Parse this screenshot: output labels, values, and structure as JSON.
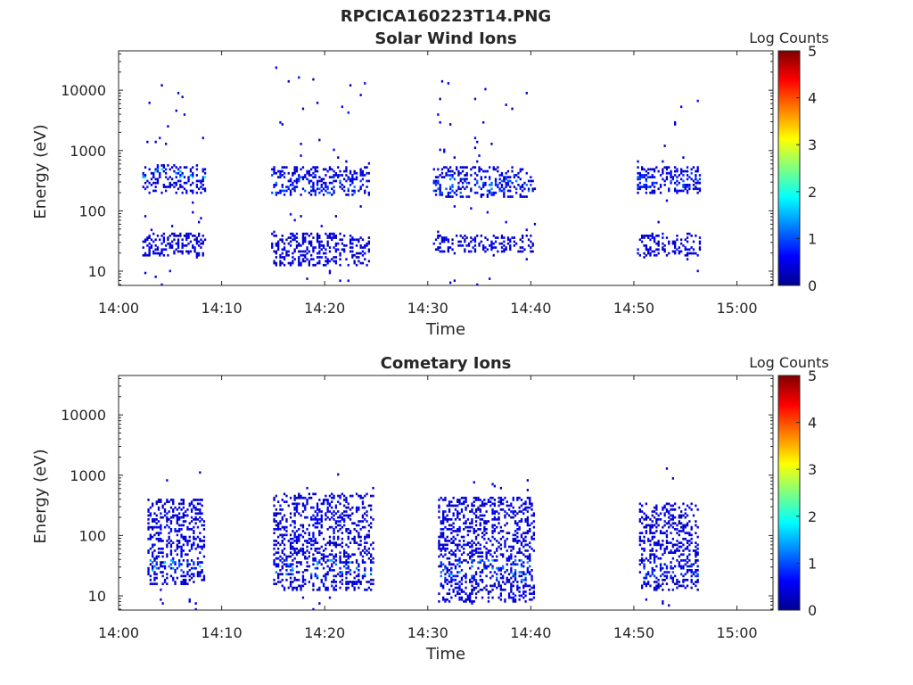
{
  "figure_title": "RPCICA160223T14.PNG",
  "colorbar": {
    "label": "Log Counts",
    "ticks": [
      "0",
      "1",
      "2",
      "3",
      "4",
      "5"
    ],
    "range": [
      0,
      5
    ],
    "colormap": "jet"
  },
  "chart_data": [
    {
      "type": "heatmap",
      "title": "Solar Wind Ions",
      "xlabel": "Time",
      "ylabel": "Energy (eV)",
      "xtick_labels": [
        "14:00",
        "14:10",
        "14:20",
        "14:30",
        "14:40",
        "14:50",
        "15:00"
      ],
      "xlim_minutes": [
        0,
        63.5
      ],
      "ytick_labels": [
        "10",
        "100",
        "1000",
        "10000"
      ],
      "ytick_values": [
        10,
        100,
        1000,
        10000
      ],
      "ylim": [
        5.8,
        45000
      ],
      "yscale": "log",
      "sweeps": [
        {
          "start_min": 2.3,
          "end_min": 8.5,
          "peak": 2.0,
          "dense_bands": [
            [
              18,
              45
            ],
            [
              200,
              600
            ]
          ],
          "peak_band": [
            350,
            500
          ],
          "max_energy": 15000
        },
        {
          "start_min": 14.8,
          "end_min": 24.2,
          "peak": 1.2,
          "dense_bands": [
            [
              12,
              45
            ],
            [
              180,
              550
            ]
          ],
          "peak_band": [
            200,
            400
          ],
          "max_energy": 25000
        },
        {
          "start_min": 30.5,
          "end_min": 40.5,
          "peak": 1.3,
          "dense_bands": [
            [
              20,
              40
            ],
            [
              170,
              550
            ]
          ],
          "peak_band": [
            200,
            400
          ],
          "max_energy": 15000
        },
        {
          "start_min": 50.3,
          "end_min": 56.5,
          "peak": 1.1,
          "dense_bands": [
            [
              18,
              45
            ],
            [
              200,
              550
            ]
          ],
          "peak_band": [
            250,
            450
          ],
          "max_energy": 9000
        }
      ]
    },
    {
      "type": "heatmap",
      "title": "Cometary Ions",
      "xlabel": "Time",
      "ylabel": "Energy (eV)",
      "xtick_labels": [
        "14:00",
        "14:10",
        "14:20",
        "14:30",
        "14:40",
        "14:50",
        "15:00"
      ],
      "xlim_minutes": [
        0,
        63.5
      ],
      "ytick_labels": [
        "10",
        "100",
        "1000",
        "10000"
      ],
      "ytick_values": [
        10,
        100,
        1000,
        10000
      ],
      "ylim": [
        5.8,
        45000
      ],
      "yscale": "log",
      "sweeps": [
        {
          "start_min": 2.8,
          "end_min": 8.3,
          "peak": 1.6,
          "dense_bands": [
            [
              15,
              45
            ],
            [
              40,
              400
            ]
          ],
          "peak_band": [
            25,
            40
          ],
          "max_energy": 1500
        },
        {
          "start_min": 15.0,
          "end_min": 24.7,
          "peak": 1.6,
          "dense_bands": [
            [
              12,
              45
            ],
            [
              40,
              500
            ]
          ],
          "peak_band": [
            20,
            40
          ],
          "max_energy": 1200
        },
        {
          "start_min": 31.0,
          "end_min": 40.3,
          "peak": 1.5,
          "dense_bands": [
            [
              8,
              45
            ],
            [
              40,
              450
            ]
          ],
          "peak_band": [
            18,
            40
          ],
          "max_energy": 1100
        },
        {
          "start_min": 50.5,
          "end_min": 56.3,
          "peak": 1.1,
          "dense_bands": [
            [
              12,
              45
            ],
            [
              40,
              350
            ]
          ],
          "peak_band": [
            20,
            38
          ],
          "max_energy": 1300
        }
      ]
    }
  ]
}
